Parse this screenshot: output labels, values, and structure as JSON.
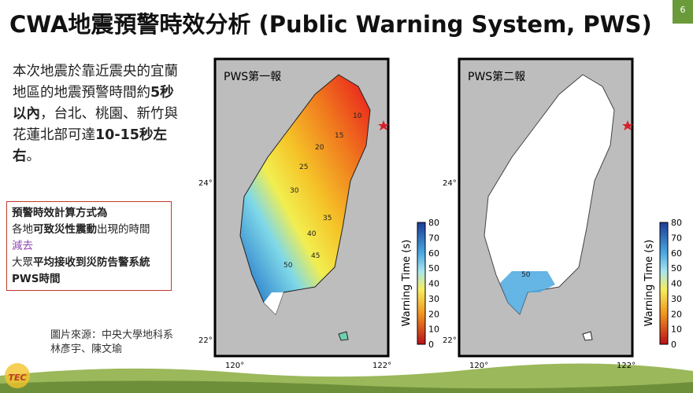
{
  "header": {
    "title": "CWA地震預警時效分析 (Public Warning System, PWS)",
    "page_number": "6"
  },
  "summary": {
    "runs": [
      {
        "text": "本次地震於靠近震央的宜蘭地區的地震預警時間約",
        "bold": false
      },
      {
        "text": "5秒以內",
        "bold": true
      },
      {
        "text": "，台北、桃園、新竹與花蓮北部可達",
        "bold": false
      },
      {
        "text": "10-15秒左右",
        "bold": true
      },
      {
        "text": "。",
        "bold": false
      }
    ]
  },
  "method_box": {
    "lines": [
      [
        {
          "text": "預警時效計算方式為",
          "style": "bold"
        }
      ],
      [
        {
          "text": "各地",
          "style": "normal"
        },
        {
          "text": "可致災性震動",
          "style": "bold"
        },
        {
          "text": "出現的時間",
          "style": "normal"
        }
      ],
      [
        {
          "text": "減去",
          "style": "purple"
        }
      ],
      [
        {
          "text": "大眾",
          "style": "normal"
        },
        {
          "text": "平均接收到災防告警系統",
          "style": "bold"
        }
      ],
      [
        {
          "text": "PWS時間",
          "style": "bold"
        }
      ]
    ]
  },
  "source": {
    "lines": [
      "圖片來源：中央大學地科系",
      "林彥宇、陳文瑜"
    ]
  },
  "logo": {
    "text": "TEC"
  },
  "maps": [
    {
      "label": "PWS第一報",
      "lat_labels": [
        "24°",
        "22°"
      ],
      "lon_labels": [
        "120°",
        "122°"
      ],
      "colorbar": {
        "title": "Warning Time (s)",
        "ticks": [
          "80",
          "70",
          "60",
          "50",
          "40",
          "30",
          "20",
          "10",
          "0"
        ]
      },
      "contour_labels": [
        "10",
        "15",
        "20",
        "25",
        "30",
        "35",
        "40",
        "45",
        "50"
      ]
    },
    {
      "label": "PWS第二報",
      "lat_labels": [
        "24°",
        "22°"
      ],
      "lon_labels": [
        "120°",
        "122°"
      ],
      "colorbar": {
        "title": "Warning Time (s)",
        "ticks": [
          "80",
          "70",
          "60",
          "50",
          "40",
          "30",
          "20",
          "10",
          "0"
        ]
      },
      "contour_labels": [
        "50"
      ]
    }
  ]
}
